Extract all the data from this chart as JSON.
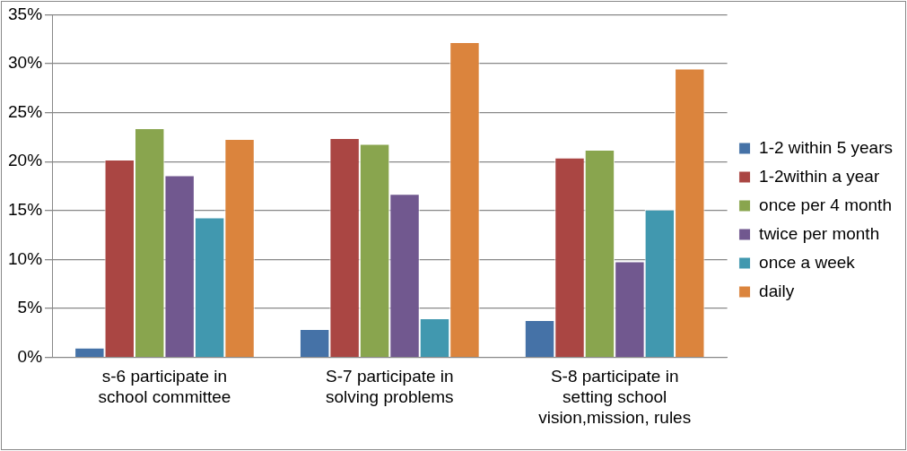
{
  "chart_data": {
    "type": "bar",
    "categories": [
      "s-6 participate in school committee",
      "S-7 participate in solving problems",
      "S-8 participate in setting school vision,mission, rules"
    ],
    "series": [
      {
        "name": "1-2 within 5 years",
        "color": "#4572a7",
        "values": [
          1.0,
          2.9,
          3.8
        ]
      },
      {
        "name": "1-2within a year",
        "color": "#aa4643",
        "values": [
          20.2,
          22.4,
          20.4
        ]
      },
      {
        "name": "once per 4 month",
        "color": "#89a54e",
        "values": [
          23.4,
          21.8,
          21.2
        ]
      },
      {
        "name": "twice per month",
        "color": "#71588f",
        "values": [
          18.6,
          16.7,
          9.8
        ]
      },
      {
        "name": "once a week",
        "color": "#4198af",
        "values": [
          14.3,
          4.0,
          15.1
        ]
      },
      {
        "name": "daily",
        "color": "#db843d",
        "values": [
          22.3,
          32.2,
          29.5
        ]
      }
    ],
    "ylim": [
      0,
      35
    ],
    "yticks": [
      {
        "value": 0,
        "label": "0%"
      },
      {
        "value": 5,
        "label": "5%"
      },
      {
        "value": 10,
        "label": "10%"
      },
      {
        "value": 15,
        "label": "15%"
      },
      {
        "value": 20,
        "label": "20%"
      },
      {
        "value": 25,
        "label": "25%"
      },
      {
        "value": 30,
        "label": "30%"
      },
      {
        "value": 35,
        "label": "35%"
      }
    ],
    "grid": "y",
    "legend": "right"
  }
}
